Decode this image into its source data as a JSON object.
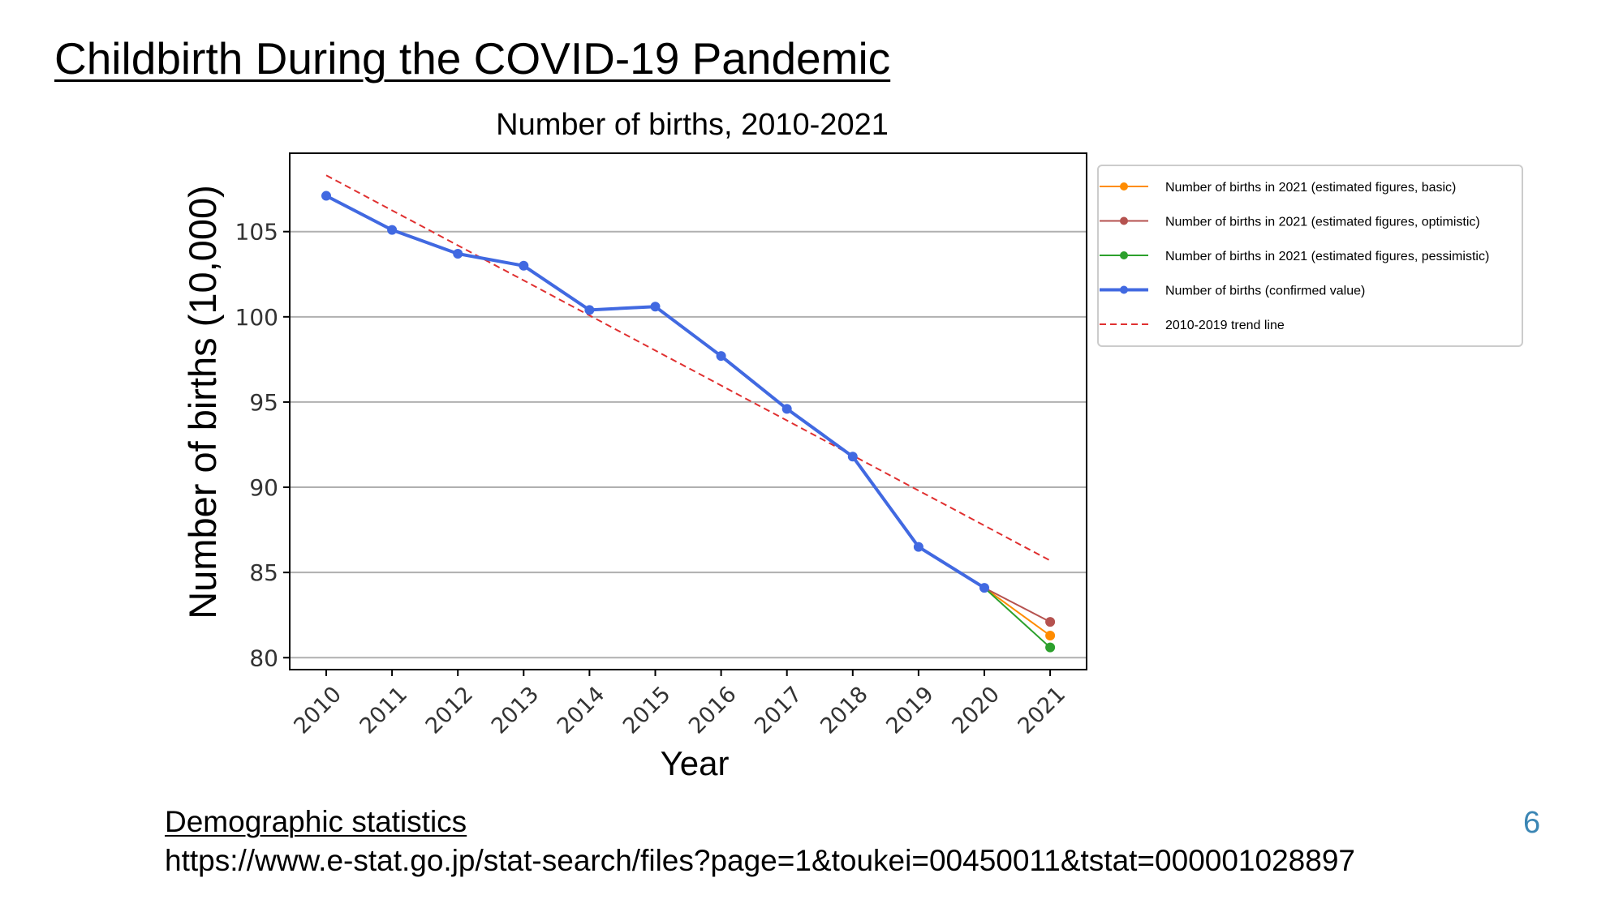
{
  "slide": {
    "title": "Childbirth During the COVID-19 Pandemic",
    "source_label": "Demographic statistics",
    "source_url": "https://www.e-stat.go.jp/stat-search/files?page=1&toukei=00450011&tstat=000001028897",
    "page_number": "6"
  },
  "chart_data": {
    "type": "line",
    "title": "Number of births, 2010-2021",
    "xlabel": "Year",
    "ylabel": "Number of births (10,000)",
    "categories": [
      "2010",
      "2011",
      "2012",
      "2013",
      "2014",
      "2015",
      "2016",
      "2017",
      "2018",
      "2019",
      "2020",
      "2021"
    ],
    "yticks": [
      80,
      85,
      90,
      95,
      100,
      105
    ],
    "ylim": [
      79.3,
      109.6
    ],
    "grid": "horizontal",
    "legend_position": "outside-right",
    "series": [
      {
        "name": "Number of births in 2021 (estimated figures, basic)",
        "color": "#ff8c00",
        "style": "solid-marker",
        "points": [
          {
            "x": "2020",
            "y": 84.1
          },
          {
            "x": "2021",
            "y": 81.3
          }
        ]
      },
      {
        "name": "Number of births in 2021 (estimated figures, optimistic)",
        "color": "#b5524f",
        "style": "solid-marker",
        "points": [
          {
            "x": "2020",
            "y": 84.1
          },
          {
            "x": "2021",
            "y": 82.1
          }
        ]
      },
      {
        "name": "Number of births in 2021 (estimated figures, pessimistic)",
        "color": "#2ca02c",
        "style": "solid-marker",
        "points": [
          {
            "x": "2020",
            "y": 84.1
          },
          {
            "x": "2021",
            "y": 80.6
          }
        ]
      },
      {
        "name": "Number of births (confirmed value)",
        "color": "#4169e1",
        "style": "solid-marker-thick",
        "points": [
          {
            "x": "2010",
            "y": 107.1
          },
          {
            "x": "2011",
            "y": 105.1
          },
          {
            "x": "2012",
            "y": 103.7
          },
          {
            "x": "2013",
            "y": 103.0
          },
          {
            "x": "2014",
            "y": 100.4
          },
          {
            "x": "2015",
            "y": 100.6
          },
          {
            "x": "2016",
            "y": 97.7
          },
          {
            "x": "2017",
            "y": 94.6
          },
          {
            "x": "2018",
            "y": 91.8
          },
          {
            "x": "2019",
            "y": 86.5
          },
          {
            "x": "2020",
            "y": 84.1
          }
        ]
      },
      {
        "name": "2010-2019 trend line",
        "color": "#e03030",
        "style": "dashed",
        "points": [
          {
            "x": "2010",
            "y": 108.3
          },
          {
            "x": "2021",
            "y": 85.7
          }
        ]
      }
    ]
  }
}
